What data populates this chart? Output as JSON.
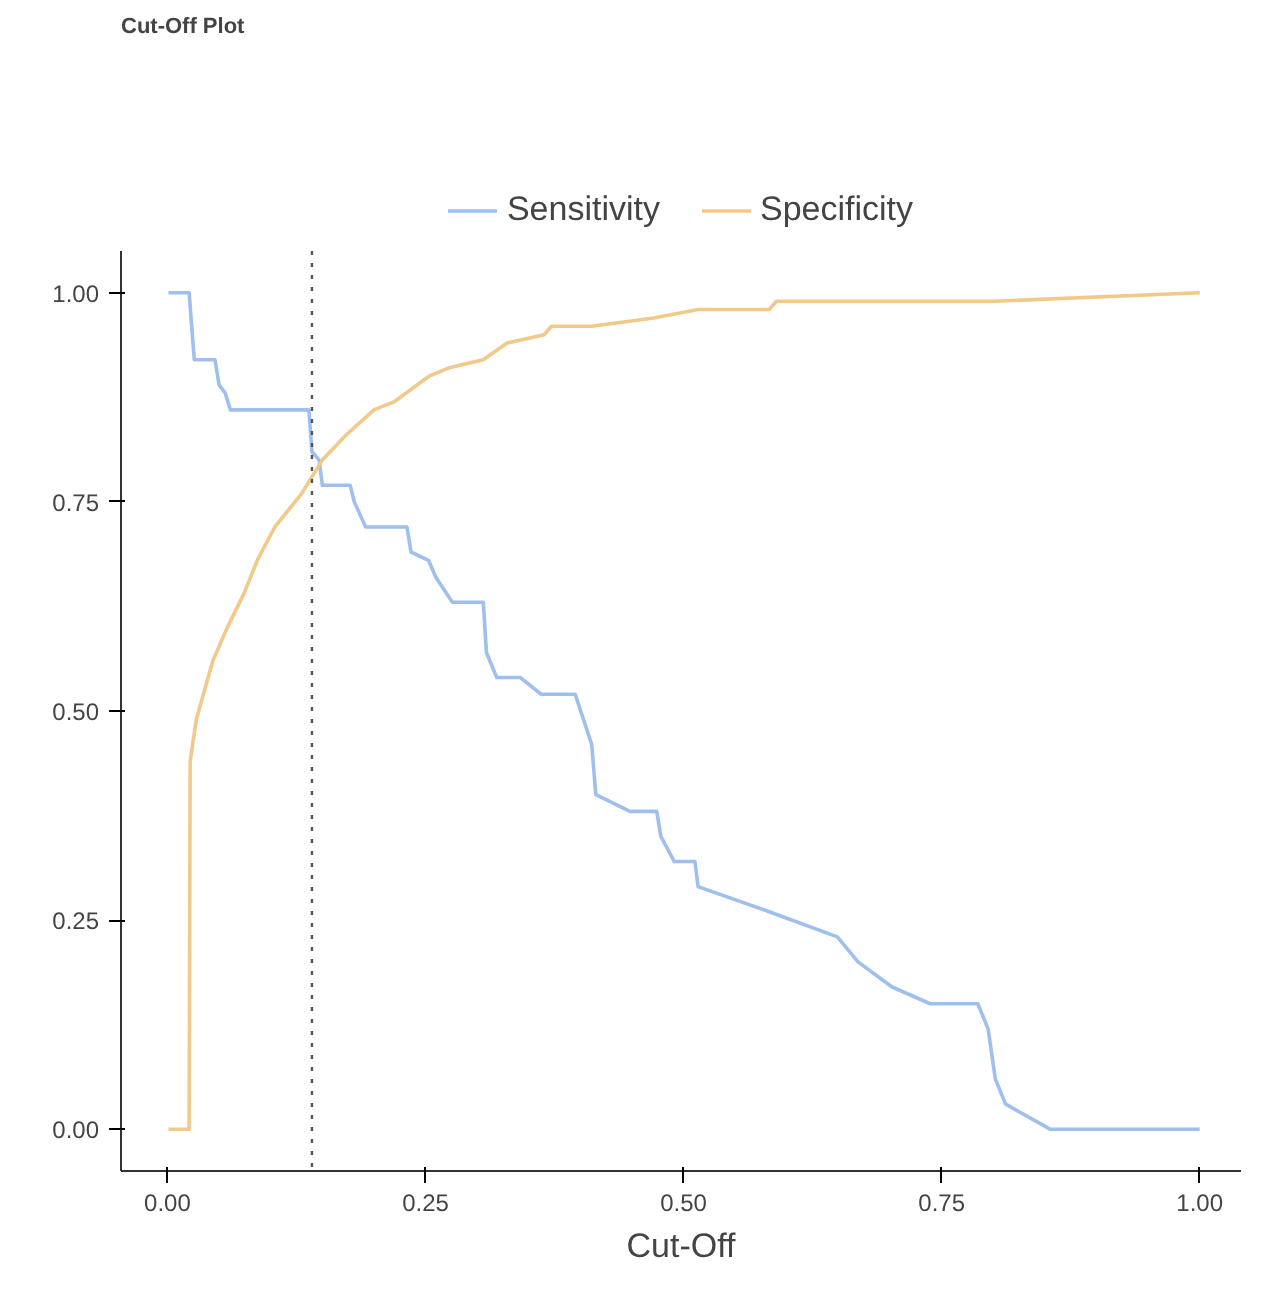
{
  "chart_data": {
    "type": "line",
    "title": "Cut-Off Plot",
    "xlabel": "Cut-Off",
    "xlim": [
      -0.045,
      1.04
    ],
    "ylim": [
      -0.05,
      1.05
    ],
    "xticks": [
      {
        "value": 0,
        "label": "0.00"
      },
      {
        "value": 0.25,
        "label": "0.25"
      },
      {
        "value": 0.5,
        "label": "0.50"
      },
      {
        "value": 0.75,
        "label": "0.75"
      },
      {
        "value": 1,
        "label": "1.00"
      }
    ],
    "yticks": [
      {
        "value": 0,
        "label": "0.00"
      },
      {
        "value": 0.25,
        "label": "0.25"
      },
      {
        "value": 0.5,
        "label": "0.50"
      },
      {
        "value": 0.75,
        "label": "0.75"
      },
      {
        "value": 1,
        "label": "1.00"
      }
    ],
    "grid": false,
    "legend": "top",
    "ref_lines": [
      {
        "axis": "x",
        "value": 0.14,
        "label": null,
        "color": "#555555",
        "line_style": "dotted"
      }
    ],
    "series": [
      {
        "name": "Sensitivity",
        "color": "#9fbfef",
        "x": [
          0.001,
          0.021,
          0.026,
          0.046,
          0.05,
          0.056,
          0.061,
          0.137,
          0.14,
          0.147,
          0.15,
          0.177,
          0.181,
          0.192,
          0.232,
          0.236,
          0.253,
          0.26,
          0.276,
          0.306,
          0.309,
          0.319,
          0.342,
          0.362,
          0.395,
          0.411,
          0.415,
          0.448,
          0.474,
          0.478,
          0.491,
          0.511,
          0.514,
          0.583,
          0.649,
          0.669,
          0.702,
          0.739,
          0.785,
          0.795,
          0.802,
          0.812,
          0.855,
          1.0
        ],
        "values": [
          1.0,
          1.0,
          0.92,
          0.92,
          0.89,
          0.88,
          0.86,
          0.86,
          0.81,
          0.8,
          0.77,
          0.77,
          0.75,
          0.72,
          0.72,
          0.69,
          0.68,
          0.66,
          0.63,
          0.63,
          0.57,
          0.54,
          0.54,
          0.52,
          0.52,
          0.46,
          0.4,
          0.38,
          0.38,
          0.35,
          0.32,
          0.32,
          0.29,
          0.26,
          0.23,
          0.2,
          0.17,
          0.15,
          0.15,
          0.12,
          0.06,
          0.03,
          0.0,
          0.0
        ]
      },
      {
        "name": "Specificity",
        "color": "#f1c98a",
        "x": [
          0.001,
          0.021,
          0.022,
          0.028,
          0.044,
          0.058,
          0.074,
          0.087,
          0.104,
          0.13,
          0.15,
          0.173,
          0.2,
          0.22,
          0.253,
          0.272,
          0.306,
          0.329,
          0.365,
          0.372,
          0.411,
          0.471,
          0.514,
          0.583,
          0.59,
          0.742,
          0.802,
          1.0
        ],
        "values": [
          0.0,
          0.0,
          0.44,
          0.49,
          0.56,
          0.6,
          0.64,
          0.68,
          0.72,
          0.76,
          0.8,
          0.83,
          0.86,
          0.87,
          0.9,
          0.91,
          0.92,
          0.94,
          0.95,
          0.96,
          0.96,
          0.97,
          0.98,
          0.98,
          0.99,
          0.99,
          0.99,
          1.0
        ]
      }
    ]
  }
}
